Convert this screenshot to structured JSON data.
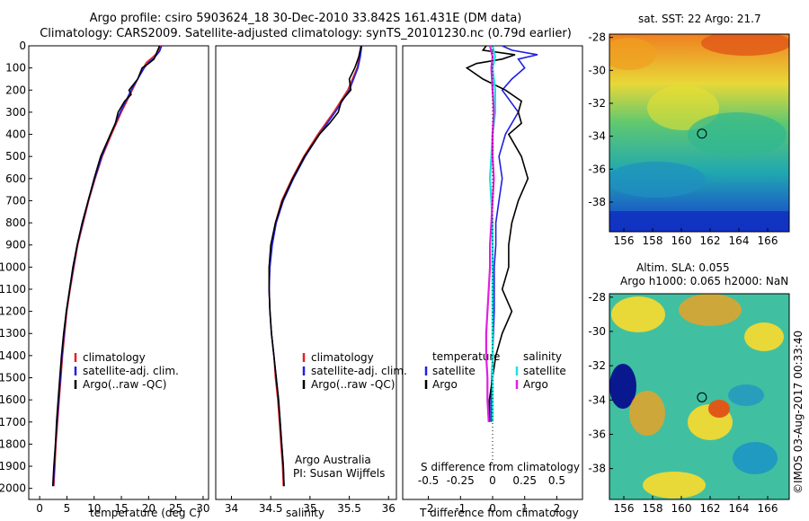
{
  "header": {
    "line1": "Argo profile: csiro 5903624_18 30-Dec-2010 33.842S 161.431E (DM data)",
    "line2": "Climatology: CARS2009. Satellite-adjusted climatology: synTS_20101230.nc (0.79d earlier)"
  },
  "colors": {
    "climatology": "#e52020",
    "satellite": "#2020e0",
    "argo": "#000000",
    "satellite_s": "#20e0e0",
    "argo_s": "#e020e0"
  },
  "chart_data": [
    {
      "type": "line",
      "name": "temperature",
      "xlabel": "temperature (deg C)",
      "ylabel": "",
      "xlim": [
        -2,
        31
      ],
      "ylim": [
        0,
        2050
      ],
      "xticks": [
        "0",
        "5",
        "10",
        "15",
        "20",
        "25",
        "30"
      ],
      "yticks": [
        "0",
        "100",
        "200",
        "300",
        "400",
        "500",
        "600",
        "700",
        "800",
        "900",
        "1000",
        "1100",
        "1200",
        "1300",
        "1400",
        "1500",
        "1600",
        "1700",
        "1800",
        "1900",
        "2000"
      ],
      "legend": [
        "climatology",
        "satellite-adj. clim.",
        "Argo(..raw -QC)"
      ],
      "series": [
        {
          "name": "climatology",
          "depth": [
            0,
            25,
            50,
            75,
            100,
            150,
            200,
            250,
            300,
            400,
            500,
            600,
            700,
            800,
            900,
            1000,
            1100,
            1200,
            1300,
            1400,
            1500,
            1600,
            1700,
            1800,
            1900,
            1990
          ],
          "values": [
            22.2,
            21.9,
            20.8,
            19.6,
            19.0,
            18.0,
            17.0,
            16.0,
            15.0,
            13.2,
            11.5,
            10.2,
            9.0,
            8.0,
            7.0,
            6.3,
            5.6,
            5.0,
            4.6,
            4.2,
            3.9,
            3.6,
            3.3,
            3.0,
            2.8,
            2.6
          ]
        },
        {
          "name": "satellite-adj. clim.",
          "depth": [
            0,
            25,
            50,
            75,
            100,
            150,
            200,
            250,
            300,
            400,
            500,
            600,
            700,
            800,
            900,
            1000,
            1100,
            1200,
            1300,
            1400,
            1500,
            1600,
            1700,
            1800,
            1900,
            1990
          ],
          "values": [
            22.4,
            22.0,
            21.2,
            20.0,
            19.2,
            18.0,
            16.8,
            15.8,
            14.8,
            13.0,
            11.4,
            10.1,
            8.9,
            7.9,
            6.9,
            6.2,
            5.5,
            4.9,
            4.5,
            4.1,
            3.8,
            3.5,
            3.2,
            2.9,
            2.7,
            2.5
          ]
        },
        {
          "name": "Argo(..raw -QC)",
          "depth": [
            0,
            30,
            60,
            80,
            100,
            150,
            200,
            220,
            250,
            300,
            350,
            400,
            500,
            600,
            700,
            800,
            900,
            1000,
            1100,
            1200,
            1300,
            1400,
            1500,
            1600,
            1700,
            1800,
            1900,
            1990
          ],
          "values": [
            22.0,
            21.5,
            21.0,
            20.0,
            18.8,
            18.0,
            16.4,
            16.8,
            15.6,
            14.4,
            13.9,
            13.0,
            11.2,
            10.0,
            8.9,
            7.8,
            6.9,
            6.1,
            5.5,
            4.9,
            4.4,
            4.0,
            3.7,
            3.4,
            3.1,
            2.9,
            2.6,
            2.4
          ]
        }
      ]
    },
    {
      "type": "line",
      "name": "salinity",
      "xlabel": "salinity",
      "xlim": [
        33.8,
        36.1
      ],
      "ylim": [
        0,
        2050
      ],
      "xticks": [
        "34",
        "34.5",
        "35",
        "35.5",
        "36"
      ],
      "legend": [
        "climatology",
        "satellite-adj. clim.",
        "Argo(..raw -QC)"
      ],
      "annotation": [
        "Argo Australia",
        "PI: Susan Wijffels"
      ],
      "series": [
        {
          "name": "climatology",
          "depth": [
            0,
            50,
            100,
            200,
            300,
            400,
            500,
            600,
            700,
            800,
            900,
            1000,
            1100,
            1200,
            1300,
            1400,
            1500,
            1600,
            1700,
            1800,
            1900,
            1990
          ],
          "values": [
            35.65,
            35.63,
            35.6,
            35.48,
            35.3,
            35.1,
            34.92,
            34.77,
            34.64,
            34.56,
            34.51,
            34.48,
            34.48,
            34.49,
            34.51,
            34.54,
            34.56,
            34.59,
            34.61,
            34.63,
            34.65,
            34.66
          ]
        },
        {
          "name": "satellite-adj. clim.",
          "depth": [
            0,
            50,
            100,
            200,
            300,
            400,
            500,
            600,
            700,
            800,
            900,
            1000,
            1100,
            1200,
            1300,
            1400,
            1500,
            1600,
            1700,
            1800,
            1900,
            1990
          ],
          "values": [
            35.66,
            35.64,
            35.61,
            35.5,
            35.32,
            35.12,
            34.94,
            34.79,
            34.66,
            34.57,
            34.52,
            34.49,
            34.48,
            34.49,
            34.51,
            34.54,
            34.57,
            34.6,
            34.62,
            34.64,
            34.66,
            34.67
          ]
        },
        {
          "name": "Argo(..raw -QC)",
          "depth": [
            0,
            50,
            100,
            150,
            200,
            250,
            300,
            350,
            400,
            500,
            600,
            700,
            800,
            900,
            1000,
            1100,
            1200,
            1300,
            1400,
            1500,
            1600,
            1700,
            1800,
            1900,
            1990
          ],
          "values": [
            35.65,
            35.62,
            35.57,
            35.5,
            35.52,
            35.4,
            35.36,
            35.25,
            35.12,
            34.93,
            34.78,
            34.65,
            34.56,
            34.5,
            34.48,
            34.48,
            34.49,
            34.51,
            34.54,
            34.57,
            34.6,
            34.62,
            34.64,
            34.66,
            34.67
          ]
        }
      ]
    },
    {
      "type": "line",
      "name": "differences",
      "xlabel": "T difference from climatology",
      "xlabel2": "S difference from climatology",
      "xlim": [
        -2.8,
        2.8
      ],
      "ylim": [
        0,
        2050
      ],
      "xticks": [
        "-2",
        "-1",
        "0",
        "1",
        "2"
      ],
      "xticks_s": [
        "-0.5",
        "-0.25",
        "0",
        "0.25",
        "0.5"
      ],
      "legend_t_title": "temperature",
      "legend_s_title": "salinity",
      "legend": [
        "satellite",
        "Argo"
      ],
      "series": [
        {
          "name": "T satellite",
          "depth": [
            0,
            20,
            40,
            60,
            80,
            100,
            150,
            200,
            300,
            400,
            500,
            600,
            700,
            800,
            900,
            1000,
            1200,
            1400,
            1600,
            1700
          ],
          "values": [
            0.3,
            0.6,
            1.4,
            0.8,
            0.9,
            1.0,
            0.6,
            0.3,
            0.8,
            0.4,
            0.2,
            0.3,
            0.2,
            0.1,
            0.1,
            0.05,
            0.05,
            0.0,
            -0.05,
            -0.05
          ]
        },
        {
          "name": "T Argo",
          "depth": [
            0,
            20,
            40,
            60,
            80,
            100,
            150,
            200,
            250,
            300,
            350,
            400,
            500,
            600,
            700,
            800,
            900,
            1000,
            1100,
            1200,
            1300,
            1400,
            1500,
            1600,
            1700
          ],
          "values": [
            -0.2,
            -0.3,
            0.7,
            0.3,
            -0.5,
            -0.8,
            -0.3,
            0.4,
            0.9,
            0.8,
            0.9,
            0.5,
            0.9,
            1.1,
            0.8,
            0.6,
            0.5,
            0.5,
            0.3,
            0.6,
            0.3,
            0.1,
            0.0,
            -0.1,
            -0.1
          ]
        },
        {
          "name": "S satellite",
          "depth": [
            0,
            50,
            100,
            200,
            300,
            400,
            500,
            600,
            700,
            800,
            900,
            1000,
            1200,
            1400,
            1600,
            1700
          ],
          "values": [
            0.0,
            0.02,
            0.0,
            0.02,
            0.02,
            0.0,
            -0.01,
            -0.02,
            -0.01,
            0.0,
            0.0,
            0.0,
            0.0,
            0.0,
            0.0,
            0.0
          ]
        },
        {
          "name": "S Argo",
          "depth": [
            0,
            50,
            100,
            200,
            300,
            400,
            500,
            600,
            700,
            800,
            900,
            1000,
            1100,
            1200,
            1300,
            1400,
            1500,
            1600,
            1700
          ],
          "values": [
            -0.02,
            0.0,
            -0.01,
            0.0,
            0.01,
            0.0,
            0.0,
            0.01,
            0.0,
            -0.01,
            -0.02,
            -0.02,
            -0.03,
            -0.04,
            -0.05,
            -0.05,
            -0.04,
            -0.04,
            -0.03
          ]
        }
      ]
    },
    {
      "type": "heatmap",
      "name": "sst-map",
      "title": "sat. SST: 22 Argo: 21.7",
      "xticks": [
        "156",
        "158",
        "160",
        "162",
        "164",
        "166"
      ],
      "yticks": [
        "-28",
        "-30",
        "-32",
        "-34",
        "-36",
        "-38"
      ],
      "xlim": [
        155,
        167.5
      ],
      "ylim": [
        -39.8,
        -27.8
      ],
      "marker": {
        "lon": 161.431,
        "lat": -33.842
      }
    },
    {
      "type": "heatmap",
      "name": "sla-map",
      "title": "Altim. SLA: 0.055",
      "subtitle": "Argo h1000: 0.065 h2000: NaN",
      "xticks": [
        "156",
        "158",
        "160",
        "162",
        "164",
        "166"
      ],
      "yticks": [
        "-28",
        "-30",
        "-32",
        "-34",
        "-36",
        "-38"
      ],
      "xlim": [
        155,
        167.5
      ],
      "ylim": [
        -39.8,
        -27.8
      ],
      "marker": {
        "lon": 161.431,
        "lat": -33.842
      }
    }
  ],
  "footer": {
    "vertical": "©IMOS 03-Aug-2017 00:33:40"
  }
}
